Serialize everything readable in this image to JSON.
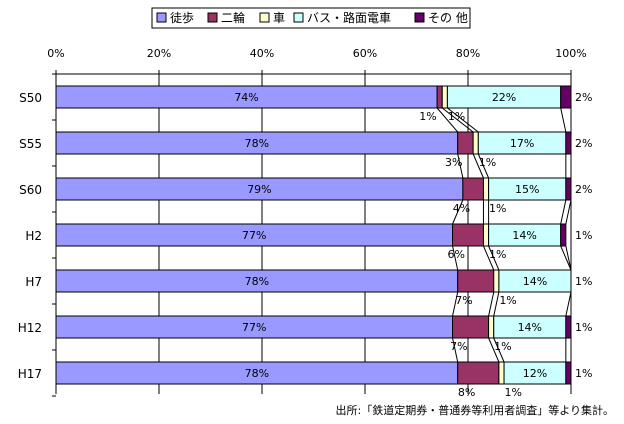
{
  "chart_data": {
    "type": "bar",
    "orientation": "horizontal",
    "stacked": true,
    "percent": true,
    "xlim": [
      0,
      100
    ],
    "x_ticks": [
      "0%",
      "20%",
      "40%",
      "60%",
      "80%",
      "100%"
    ],
    "categories": [
      "S50",
      "S55",
      "S60",
      "H2",
      "H7",
      "H12",
      "H17"
    ],
    "series": [
      {
        "name": "徒歩",
        "color": "#9999ff",
        "values": [
          74,
          78,
          79,
          77,
          78,
          77,
          78
        ],
        "labels": [
          "74%",
          "78%",
          "79%",
          "77%",
          "78%",
          "77%",
          "78%"
        ]
      },
      {
        "name": "二輪",
        "color": "#993366",
        "values": [
          1,
          3,
          4,
          6,
          7,
          7,
          8
        ],
        "labels": [
          "1%",
          "3%",
          "4%",
          "6%",
          "7%",
          "7%",
          "8%"
        ]
      },
      {
        "name": "車",
        "color": "#ffffcc",
        "values": [
          1,
          1,
          1,
          1,
          1,
          1,
          1
        ],
        "labels": [
          "1%",
          "1%",
          "1%",
          "1%",
          "1%",
          "1%",
          "1%"
        ]
      },
      {
        "name": "バス・路面電車",
        "color": "#ccffff",
        "values": [
          22,
          17,
          15,
          14,
          14,
          14,
          12
        ],
        "labels": [
          "22%",
          "17%",
          "15%",
          "14%",
          "14%",
          "14%",
          "12%"
        ]
      },
      {
        "name": "その 他",
        "color": "#660066",
        "values": [
          2,
          2,
          2,
          1,
          1,
          1,
          1
        ],
        "labels": [
          "2%",
          "2%",
          "2%",
          "1%",
          "1%",
          "1%",
          "1%"
        ]
      }
    ],
    "legend_position": "top",
    "grid": true,
    "source": "出所:「鉄道定期券・普通券等利用者調査」等より集計。"
  }
}
